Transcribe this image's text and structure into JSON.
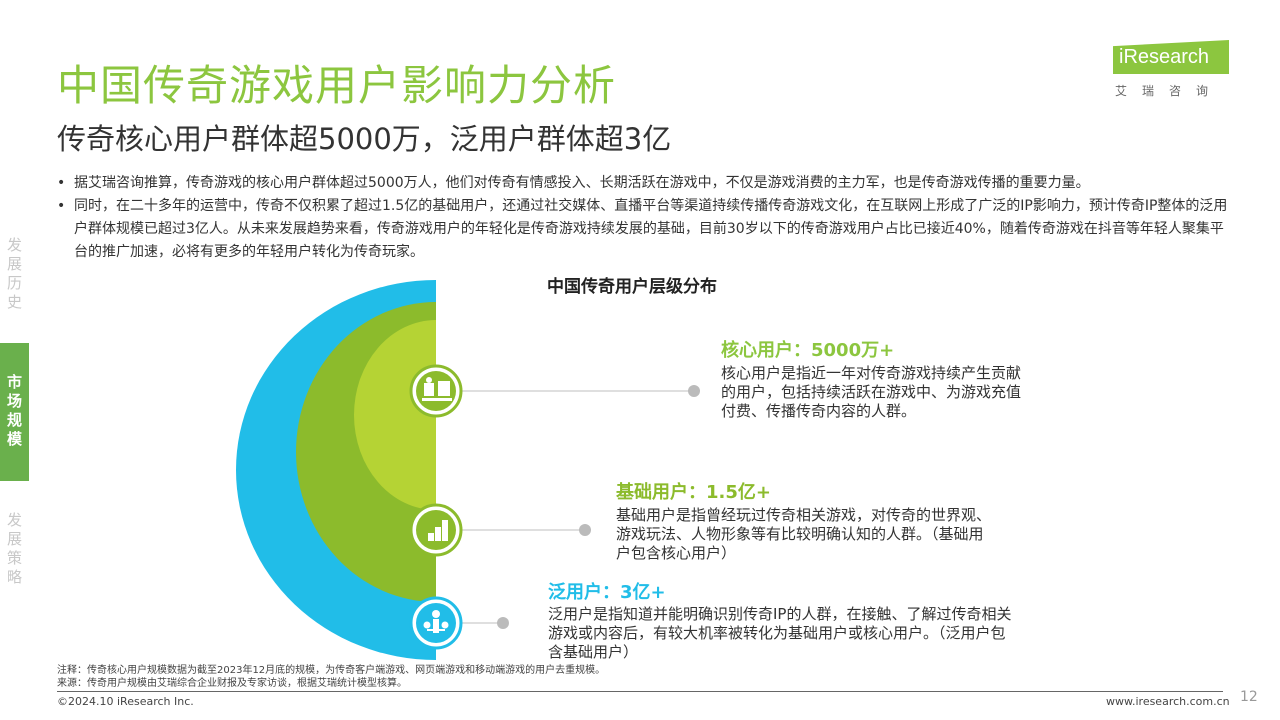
{
  "header": {
    "title": "中国传奇游戏用户影响力分析",
    "subtitle": "传奇核心用户群体超5000万，泛用户群体超3亿"
  },
  "logo": {
    "text": "iResearch",
    "cn": "艾瑞咨询"
  },
  "bullets": [
    "据艾瑞咨询推算，传奇游戏的核心用户群体超过5000万人，他们对传奇有情感投入、长期活跃在游戏中，不仅是游戏消费的主力军，也是传奇游戏传播的重要力量。",
    "同时，在二十多年的运营中，传奇不仅积累了超过1.5亿的基础用户，还通过社交媒体、直播平台等渠道持续传播传奇游戏文化，在互联网上形成了广泛的IP影响力，预计传奇IP整体的泛用户群体规模已超过3亿人。从未来发展趋势来看，传奇游戏用户的年轻化是传奇游戏持续发展的基础，目前30岁以下的传奇游戏用户占比已接近40%，随着传奇游戏在抖音等年轻人聚集平台的推广加速，必将有更多的年轻用户转化为传奇玩家。"
  ],
  "bullet_marker": "•",
  "side_nav": [
    {
      "label": "发展历史"
    },
    {
      "label": "市场规模"
    },
    {
      "label": "发展策略"
    }
  ],
  "chart": {
    "title": "中国传奇用户层级分布",
    "levels": [
      {
        "title": "核心用户：5000万+",
        "desc": "核心用户是指近一年对传奇游戏持续产生贡献的用户，包括持续活跃在游戏中、为游戏充值付费、传播传奇内容的人群。",
        "icon": "users-badge-icon"
      },
      {
        "title": "基础用户：1.5亿+",
        "desc": "基础用户是指曾经玩过传奇相关游戏，对传奇的世界观、游戏玩法、人物形象等有比较明确认知的人群。（基础用户包含核心用户）",
        "icon": "steps-icon"
      },
      {
        "title": "泛用户：3亿+",
        "desc": "泛用户是指知道并能明确识别传奇IP的人群，在接触、了解过传奇相关游戏或内容后，有较大机率被转化为基础用户或核心用户。（泛用户包含基础用户）",
        "icon": "network-icon"
      }
    ]
  },
  "colors": {
    "green": "#8cc63f",
    "light_green": "#b5d334",
    "mid_green": "#8cbb2c",
    "cyan": "#21bde8",
    "nav_active": "#6ab04c"
  },
  "footer": {
    "note": "注释：传奇核心用户规模数据为截至2023年12月底的规模，为传奇客户端游戏、网页端游戏和移动端游戏的用户去重规模。",
    "source": "来源：传奇用户规模由艾瑞综合企业财报及专家访谈，根据艾瑞统计模型核算。",
    "copyright": "©2024.10 iResearch Inc.",
    "website": "www.iresearch.com.cn",
    "page": "12"
  }
}
